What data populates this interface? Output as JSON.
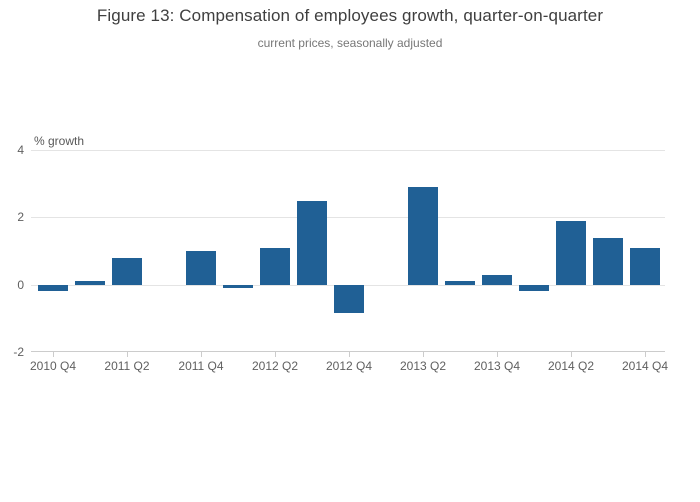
{
  "chart_data": {
    "type": "bar",
    "title": "Figure 13: Compensation of employees growth, quarter-on-quarter",
    "subtitle": "current prices, seasonally adjusted",
    "ylabel": "% growth",
    "xlabel": "",
    "ylim": [
      -2,
      4
    ],
    "y_ticks": [
      4,
      2,
      0,
      -2
    ],
    "grid": true,
    "legend_position": "none",
    "categories": [
      "2010 Q4",
      "2011 Q1",
      "2011 Q2",
      "2011 Q3",
      "2011 Q4",
      "2012 Q1",
      "2012 Q2",
      "2012 Q3",
      "2012 Q4",
      "2013 Q1",
      "2013 Q2",
      "2013 Q3",
      "2013 Q4",
      "2014 Q1",
      "2014 Q2",
      "2014 Q3",
      "2014 Q4"
    ],
    "values": [
      -0.2,
      0.1,
      0.8,
      0.0,
      1.0,
      -0.1,
      1.1,
      2.5,
      -0.85,
      0.0,
      2.9,
      0.1,
      0.3,
      -0.2,
      1.9,
      1.4,
      1.1
    ],
    "x_tick_labels": [
      "2010 Q4",
      "2011 Q2",
      "2011 Q4",
      "2012 Q2",
      "2012 Q4",
      "2013 Q2",
      "2013 Q4",
      "2014 Q2",
      "2014 Q4"
    ],
    "colors": {
      "bar": "#206095",
      "grid": "#e4e4e4",
      "axis": "#cccccc",
      "title": "#3f3f3f",
      "subtitle": "#777777",
      "tick_label": "#606060"
    }
  }
}
